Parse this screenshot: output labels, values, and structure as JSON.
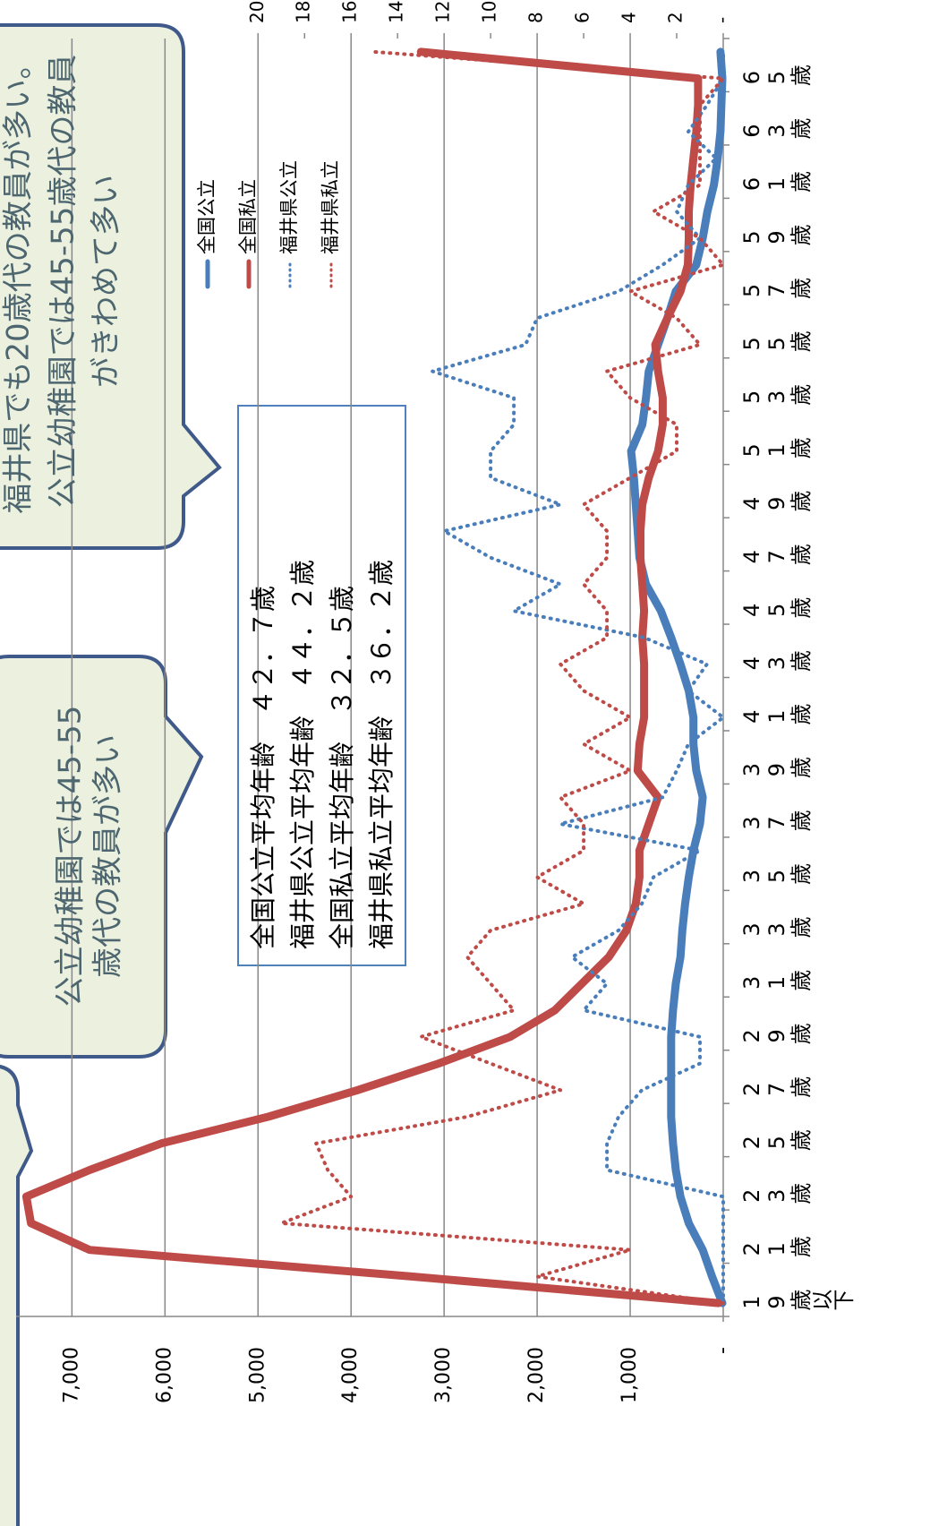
{
  "chart_data": {
    "type": "line",
    "categories": [
      "19歳以下",
      null,
      "21歳",
      null,
      "23歳",
      null,
      "25歳",
      null,
      "27歳",
      null,
      "29歳",
      null,
      "31歳",
      null,
      "33歳",
      null,
      "35歳",
      null,
      "37歳",
      null,
      "39歳",
      null,
      "41歳",
      null,
      "43歳",
      null,
      "45歳",
      null,
      "47歳",
      null,
      "49歳",
      null,
      "51歳",
      null,
      "53歳",
      null,
      "55歳",
      null,
      "57歳",
      null,
      "59歳",
      null,
      "61歳",
      null,
      "63歳",
      null,
      "65歳",
      null
    ],
    "series": [
      {
        "name": "全国公立",
        "color": "#4a7ebb",
        "style": "solid",
        "values": [
          10,
          120,
          220,
          370,
          460,
          510,
          540,
          560,
          560,
          560,
          560,
          540,
          510,
          460,
          440,
          410,
          370,
          320,
          250,
          220,
          290,
          320,
          320,
          370,
          460,
          560,
          670,
          830,
          900,
          920,
          940,
          960,
          990,
          870,
          830,
          800,
          700,
          600,
          510,
          290,
          220,
          170,
          100,
          60,
          30,
          20,
          10,
          30
        ]
      },
      {
        "name": "全国私立",
        "color": "#be4b48",
        "style": "solid",
        "values": [
          50,
          3350,
          6810,
          7440,
          7490,
          6810,
          6040,
          4890,
          3930,
          3060,
          2290,
          1810,
          1520,
          1230,
          1040,
          940,
          900,
          900,
          800,
          700,
          920,
          900,
          850,
          850,
          850,
          870,
          850,
          870,
          890,
          890,
          870,
          800,
          700,
          650,
          650,
          700,
          730,
          600,
          460,
          380,
          370,
          370,
          350,
          320,
          290,
          270,
          270,
          3250
        ]
      },
      {
        "name": "福井県公立",
        "color": "#4a7ebb",
        "style": "dotted",
        "axis": "y2",
        "values": [
          0,
          0,
          0,
          0,
          0,
          5,
          5,
          4.5,
          3.5,
          1,
          1,
          6,
          5,
          6.5,
          4.5,
          3.5,
          3,
          1,
          7,
          2.6,
          2,
          1.5,
          0,
          1.5,
          0.7,
          3.4,
          9,
          7,
          10,
          12,
          7,
          10,
          10,
          9,
          9,
          12.5,
          8.5,
          8,
          4.5,
          2.6,
          1,
          2,
          1.5,
          0.3,
          1.5,
          0.7,
          0,
          0
        ]
      },
      {
        "name": "福井県私立",
        "color": "#be4b48",
        "style": "dotted",
        "axis": "y2",
        "values": [
          0,
          8,
          4,
          19,
          16,
          17,
          17.5,
          11,
          7,
          10,
          13,
          9,
          10,
          11,
          10,
          6,
          8,
          6,
          6,
          7,
          4,
          6,
          4,
          6,
          7,
          5,
          5,
          6,
          5,
          5,
          6,
          4,
          2,
          2,
          4,
          5,
          1,
          2,
          4,
          0,
          1,
          3,
          1,
          1,
          1,
          1,
          0,
          15
        ]
      }
    ],
    "ylim": [
      0,
      7600
    ],
    "yticks": [
      {
        "value": 0,
        "label": "-"
      },
      {
        "value": 1000,
        "label": "1,000"
      },
      {
        "value": 2000,
        "label": "2,000"
      },
      {
        "value": 3000,
        "label": "3,000"
      },
      {
        "value": 4000,
        "label": "4,000"
      },
      {
        "value": 5000,
        "label": "5,000"
      },
      {
        "value": 6000,
        "label": "6,000"
      },
      {
        "value": 7000,
        "label": "7,000"
      }
    ],
    "y2lim": [
      0,
      30.4
    ],
    "y2ticks": [
      {
        "value": 0,
        "label": "-"
      },
      2,
      4,
      6,
      8,
      10,
      12,
      14,
      16,
      18,
      20
    ],
    "grid": true,
    "stats_box": [
      "全国公立平均年齢　４２．７歳",
      "福井県公立平均年齢　４４．２歳",
      "全国私立平均年齢　３２．５歳",
      "福井県私立平均年齢　３６．２歳"
    ],
    "annotations": [
      [
        "福井県でも20歳代の教員が多い。",
        "公立幼稚園では45-55歳代の教員",
        "がきわめて多い"
      ],
      [
        "公立幼稚園では45-55",
        "歳代の教員が多い"
      ]
    ]
  }
}
